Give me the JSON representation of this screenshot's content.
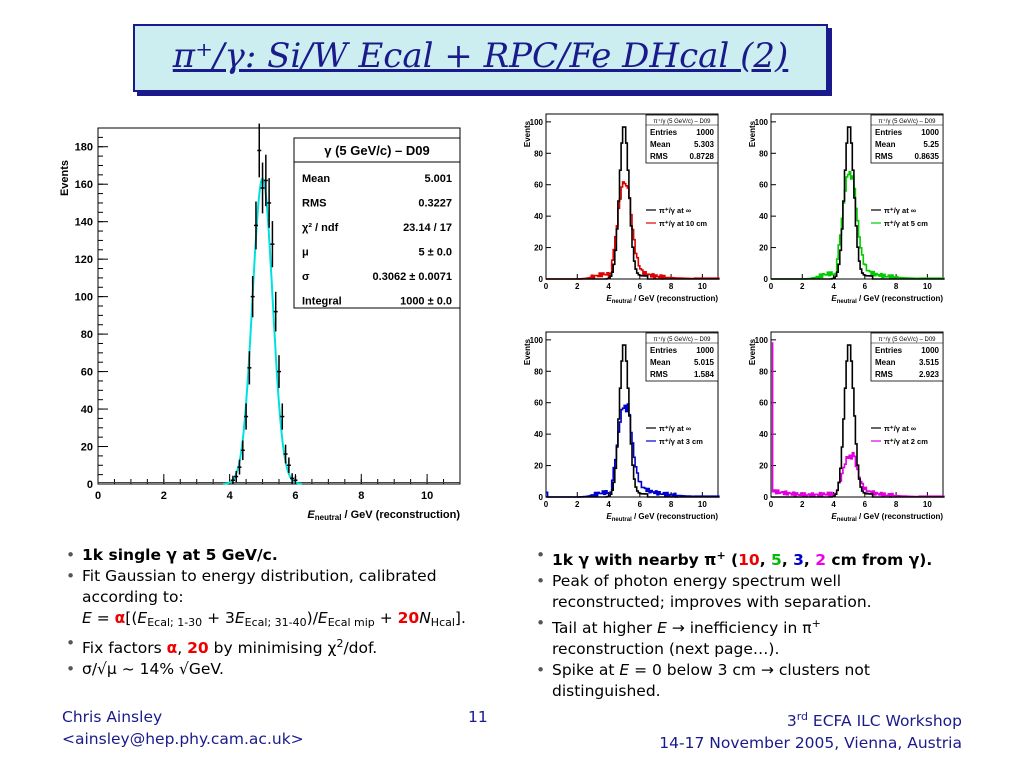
{
  "slide": {
    "title": "π⁺/γ: Si/W Ecal + RPC/Fe DHcal (2)",
    "page_number": "11",
    "footer_left_line1": "Chris Ainsley",
    "footer_left_line2": "<ainsley@hep.phy.cam.ac.uk>",
    "footer_right_line1_prefix": "3",
    "footer_right_line1_sup": "rd",
    "footer_right_line1_rest": " ECFA ILC Workshop",
    "footer_right_line2": "14-17 November 2005, Vienna, Austria"
  },
  "left_bullets": {
    "b1": "1k single γ at 5 GeV/c.",
    "b2_line1": "Fit Gaussian to energy distribution, calibrated",
    "b2_line2": "according to:",
    "formula": {
      "e": "E",
      "eq": " = ",
      "alpha": "α",
      "p1": "[(",
      "e1": "E",
      "s1": "Ecal; 1-30",
      "p2": " + 3",
      "e2": "E",
      "s2": "Ecal; 31-40",
      "p3": ")/",
      "e3": "E",
      "s3": "Ecal mip",
      "p4": " + ",
      "twenty": "20",
      "n": "N",
      "s4": "Hcal",
      "p5": "]."
    },
    "b3_prefix": "Fix factors ",
    "b3_alpha": "α",
    "b3_comma": ", ",
    "b3_twenty": "20",
    "b3_suffix": " by minimising χ",
    "b3_sup": "2",
    "b3_end": "/dof.",
    "b4": "σ/√μ ~ 14% √GeV."
  },
  "right_bullets": {
    "b1_prefix": "1k γ with nearby π",
    "b1_sup": "+",
    "b1_open": " (",
    "d1": "10",
    "c1": ", ",
    "d2": "5",
    "c2": ", ",
    "d3": "3",
    "c3": ", ",
    "d4": "2",
    "b1_suffix": " cm from γ).",
    "b2_line1": "Peak of photon energy spectrum well",
    "b2_line2": "reconstructed; improves with separation.",
    "b3_prefix": "Tail at higher ",
    "b3_e": "E",
    "b3_mid": "  → inefficiency in π",
    "b3_sup": "+",
    "b3_line2": "reconstruction (next page…).",
    "b4_prefix": "Spike at ",
    "b4_e": "E",
    "b4_mid": " = 0 below 3 cm → clusters not",
    "b4_line2": "distinguished."
  },
  "colors": {
    "title": "#1a1a8c",
    "title_bg": "#cdeef0",
    "fit": "#00e0e0",
    "series_10cm": "#e00000",
    "series_5cm": "#00cc00",
    "series_3cm": "#0000cc",
    "series_2cm": "#e000e0",
    "reference": "#000000"
  },
  "chart_data": [
    {
      "type": "line",
      "panel": "main",
      "ylabel": "Events",
      "xlabel_e": "E",
      "xlabel_sub": "neutral",
      "xlabel_rest": " / GeV  (reconstruction)",
      "xlim": [
        0,
        11
      ],
      "ylim": [
        0,
        190
      ],
      "xticks": [
        "0",
        "2",
        "4",
        "6",
        "8",
        "10"
      ],
      "yticks": [
        "0",
        "20",
        "40",
        "60",
        "80",
        "100",
        "120",
        "140",
        "160",
        "180"
      ],
      "stats_title": "γ (5 GeV/c) – D09",
      "stats": [
        {
          "label": "Mean",
          "value": "5.001"
        },
        {
          "label": "RMS",
          "value": "0.3227"
        },
        {
          "label": "χ² / ndf",
          "value": "23.14 / 17"
        },
        {
          "label": "μ",
          "value": "5 ± 0.0"
        },
        {
          "label": "σ",
          "value": "0.3062 ± 0.0071"
        },
        {
          "label": "Integral",
          "value": "1000 ± 0.0"
        }
      ],
      "fit": {
        "mu": 5.0,
        "sigma": 0.3062,
        "amplitude": 163
      },
      "points": {
        "x": [
          4.1,
          4.2,
          4.3,
          4.4,
          4.5,
          4.6,
          4.7,
          4.8,
          4.9,
          5.0,
          5.1,
          5.2,
          5.3,
          5.4,
          5.5,
          5.6,
          5.7,
          5.8,
          5.9,
          6.0
        ],
        "y": [
          2,
          4,
          9,
          18,
          36,
          62,
          100,
          138,
          178,
          158,
          162,
          150,
          128,
          92,
          60,
          36,
          16,
          10,
          3,
          2
        ]
      }
    },
    {
      "type": "line",
      "panel": "10cm",
      "ylabel": "Events",
      "stats_title": "π⁺/γ (5 GeV/c) – D09",
      "stats": [
        {
          "label": "Entries",
          "value": "1000"
        },
        {
          "label": "Mean",
          "value": "5.303"
        },
        {
          "label": "RMS",
          "value": "0.8728"
        }
      ],
      "legend": [
        "π⁺/γ at ∞",
        "π⁺/γ at 10 cm"
      ],
      "xlim": [
        0,
        11
      ],
      "ylim": [
        0,
        105
      ],
      "color": "#e00000",
      "peak": 62,
      "tail": 0.12,
      "spike": 0
    },
    {
      "type": "line",
      "panel": "5cm",
      "ylabel": "Events",
      "stats_title": "π⁺/γ (5 GeV/c) – D09",
      "stats": [
        {
          "label": "Entries",
          "value": "1000"
        },
        {
          "label": "Mean",
          "value": "5.25"
        },
        {
          "label": "RMS",
          "value": "0.8635"
        }
      ],
      "legend": [
        "π⁺/γ at ∞",
        "π⁺/γ at 5 cm"
      ],
      "xlim": [
        0,
        11
      ],
      "ylim": [
        0,
        105
      ],
      "color": "#00cc00",
      "peak": 68,
      "tail": 0.14,
      "spike": 0
    },
    {
      "type": "line",
      "panel": "3cm",
      "ylabel": "Events",
      "stats_title": "π⁺/γ (5 GeV/c) – D09",
      "stats": [
        {
          "label": "Entries",
          "value": "1000"
        },
        {
          "label": "Mean",
          "value": "5.015"
        },
        {
          "label": "RMS",
          "value": "1.584"
        }
      ],
      "legend": [
        "π⁺/γ at ∞",
        "π⁺/γ at 3 cm"
      ],
      "xlim": [
        0,
        11
      ],
      "ylim": [
        0,
        105
      ],
      "color": "#0000cc",
      "peak": 58,
      "tail": 0.2,
      "spike": 3
    },
    {
      "type": "line",
      "panel": "2cm",
      "ylabel": "Events",
      "stats_title": "π⁺/γ (5 GeV/c) – D09",
      "stats": [
        {
          "label": "Entries",
          "value": "1000"
        },
        {
          "label": "Mean",
          "value": "3.515"
        },
        {
          "label": "RMS",
          "value": "2.923"
        }
      ],
      "legend": [
        "π⁺/γ at ∞",
        "π⁺/γ at 2 cm"
      ],
      "xlim": [
        0,
        11
      ],
      "ylim": [
        0,
        105
      ],
      "color": "#e000e0",
      "peak": 26,
      "tail": 0.28,
      "spike": 98
    },
    {
      "type": "line",
      "panel": "small-axis",
      "xlabel_e": "E",
      "xlabel_sub": "neutral",
      "xlabel_rest": " / GeV  (reconstruction)",
      "xticks": [
        "0",
        "2",
        "4",
        "6",
        "8",
        "10"
      ],
      "yticks": [
        "0",
        "20",
        "40",
        "60",
        "80",
        "100"
      ]
    }
  ]
}
